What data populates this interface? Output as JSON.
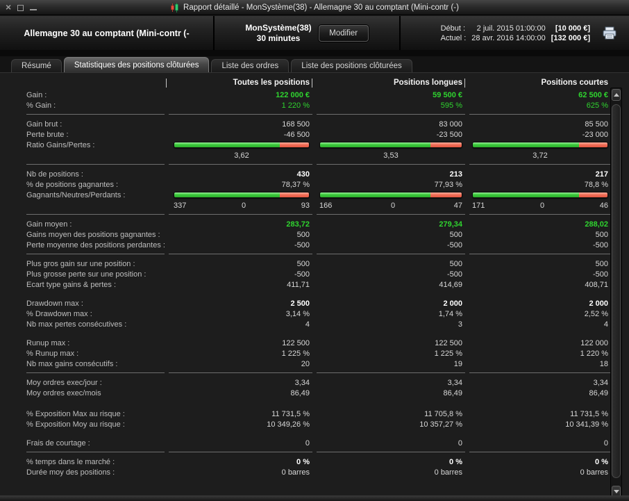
{
  "window": {
    "title": "Rapport détaillé - MonSystème(38) - Allemagne 30 au comptant (Mini-contr (-)"
  },
  "header": {
    "instrument": "Allemagne 30 au comptant (Mini-contr (-",
    "system_name": "MonSystème(38)",
    "timeframe": "30 minutes",
    "modify_button": "Modifier",
    "start_label": "Début :",
    "start_datetime": "2 juil. 2015 01:00:00",
    "start_capital": "[10 000 €]",
    "current_label": "Actuel :",
    "current_datetime": "28 avr. 2016 14:00:00",
    "current_capital": "[132 000 €]"
  },
  "tabs": [
    {
      "label": "Résumé",
      "active": false
    },
    {
      "label": "Statistiques des positions clôturées",
      "active": true
    },
    {
      "label": "Liste des ordres",
      "active": false
    },
    {
      "label": "Liste des positions clôturées",
      "active": false
    }
  ],
  "table": {
    "columns": [
      "",
      "Toutes les positions",
      "Positions longues",
      "Positions courtes"
    ],
    "colors": {
      "green_text": "#2fd42f",
      "bar_green": "#3cc93c",
      "bar_red": "#f2705a"
    },
    "sections": [
      {
        "rows": [
          {
            "label": "Gain :",
            "values": [
              "122 000 €",
              "59 500 €",
              "62 500 €"
            ],
            "style": "green-bold"
          },
          {
            "label": "% Gain :",
            "values": [
              "1 220 %",
              "595 %",
              "625 %"
            ],
            "style": "green"
          }
        ],
        "divider_after": true
      },
      {
        "rows": [
          {
            "label": "Gain brut :",
            "values": [
              "168 500",
              "83 000",
              "85 500"
            ],
            "style": "normal"
          },
          {
            "label": "Perte brute :",
            "values": [
              "-46 500",
              "-23 500",
              "-23 000"
            ],
            "style": "normal"
          },
          {
            "label": "Ratio Gains/Pertes :",
            "type": "bar",
            "green_pct": [
              78.3,
              77.9,
              78.8
            ]
          },
          {
            "type": "center_values",
            "values": [
              "3,62",
              "3,53",
              "3,72"
            ]
          }
        ],
        "divider_after": true
      },
      {
        "rows": [
          {
            "label": "Nb de positions :",
            "values": [
              "430",
              "213",
              "217"
            ],
            "style": "bold"
          },
          {
            "label": "% de positions gagnantes :",
            "values": [
              "78,37 %",
              "77,93 %",
              "78,8 %"
            ],
            "style": "normal"
          },
          {
            "label": "Gagnants/Neutres/Perdants :",
            "type": "bar",
            "green_pct": [
              78.4,
              77.9,
              78.8
            ]
          },
          {
            "type": "triple_values",
            "values": [
              [
                "337",
                "0",
                "93"
              ],
              [
                "166",
                "0",
                "47"
              ],
              [
                "171",
                "0",
                "46"
              ]
            ]
          }
        ],
        "divider_after": true
      },
      {
        "rows": [
          {
            "label": "Gain moyen :",
            "values": [
              "283,72",
              "279,34",
              "288,02"
            ],
            "style": "green-bold"
          },
          {
            "label": "Gains moyen des positions gagnantes :",
            "values": [
              "500",
              "500",
              "500"
            ],
            "style": "normal"
          },
          {
            "label": "Perte moyenne des positions perdantes :",
            "values": [
              "-500",
              "-500",
              "-500"
            ],
            "style": "normal"
          }
        ],
        "divider_after": true
      },
      {
        "rows": [
          {
            "label": "Plus gros gain sur une position :",
            "values": [
              "500",
              "500",
              "500"
            ],
            "style": "normal"
          },
          {
            "label": "Plus grosse perte sur une position :",
            "values": [
              "-500",
              "-500",
              "-500"
            ],
            "style": "normal"
          },
          {
            "label": "Ecart type gains & pertes :",
            "values": [
              "411,71",
              "414,69",
              "408,71"
            ],
            "style": "normal"
          }
        ],
        "divider_after": false
      },
      {
        "gap_before": true,
        "rows": [
          {
            "label": "Drawdown max :",
            "values": [
              "2 500",
              "2 000",
              "2 000"
            ],
            "style": "bold"
          },
          {
            "label": "% Drawdown max :",
            "values": [
              "3,14 %",
              "1,74 %",
              "2,52 %"
            ],
            "style": "normal"
          },
          {
            "label": "Nb max pertes consécutives :",
            "values": [
              "4",
              "3",
              "4"
            ],
            "style": "normal"
          }
        ],
        "divider_after": false
      },
      {
        "gap_before": true,
        "rows": [
          {
            "label": "Runup max :",
            "values": [
              "122 500",
              "122 500",
              "122 000"
            ],
            "style": "normal"
          },
          {
            "label": "% Runup max :",
            "values": [
              "1 225 %",
              "1 225 %",
              "1 220 %"
            ],
            "style": "normal"
          },
          {
            "label": "Nb max gains consécutifs :",
            "values": [
              "20",
              "19",
              "18"
            ],
            "style": "normal"
          }
        ],
        "divider_after": true
      },
      {
        "rows": [
          {
            "label": "Moy ordres exec/jour :",
            "values": [
              "3,34",
              "3,34",
              "3,34"
            ],
            "style": "normal"
          },
          {
            "label": "Moy ordres exec/mois",
            "values": [
              "86,49",
              "86,49",
              "86,49"
            ],
            "style": "normal"
          },
          {
            "type": "spacer"
          },
          {
            "label": "% Exposition Max au risque :",
            "values": [
              "11 731,5 %",
              "11 705,8 %",
              "11 731,5 %"
            ],
            "style": "normal"
          },
          {
            "label": "% Exposition Moy au risque :",
            "values": [
              "10 349,26 %",
              "10 357,27 %",
              "10 341,39 %"
            ],
            "style": "normal"
          }
        ],
        "divider_after": false
      },
      {
        "gap_before": true,
        "rows": [
          {
            "label": "Frais de courtage :",
            "values": [
              "0",
              "0",
              "0"
            ],
            "style": "normal"
          }
        ],
        "divider_after": true
      },
      {
        "rows": [
          {
            "label": "% temps dans le marché :",
            "values": [
              "0 %",
              "0 %",
              "0 %"
            ],
            "style": "bold"
          },
          {
            "label": "Durée moy des positions :",
            "values": [
              "0 barres",
              "0 barres",
              "0 barres"
            ],
            "style": "normal"
          }
        ],
        "divider_after": false
      }
    ]
  }
}
